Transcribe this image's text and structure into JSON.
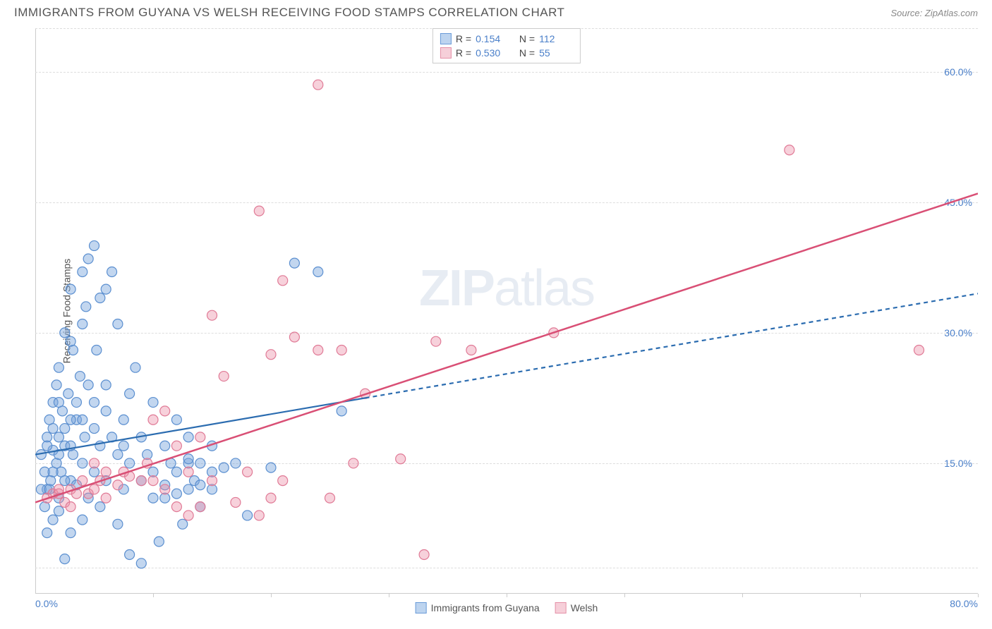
{
  "header": {
    "title": "IMMIGRANTS FROM GUYANA VS WELSH RECEIVING FOOD STAMPS CORRELATION CHART",
    "source_prefix": "Source: ",
    "source_name": "ZipAtlas.com"
  },
  "chart": {
    "type": "scatter",
    "y_axis_label": "Receiving Food Stamps",
    "background_color": "#ffffff",
    "grid_color": "#dddddd",
    "axis_color": "#cccccc",
    "label_color": "#555555",
    "tick_label_color": "#4a7fc9",
    "tick_fontsize": 14,
    "label_fontsize": 14,
    "xlim": [
      0,
      80
    ],
    "ylim": [
      0,
      65
    ],
    "x_ticks": [
      {
        "pos": 0,
        "label": "0.0%"
      },
      {
        "pos": 80,
        "label": "80.0%"
      }
    ],
    "x_tick_marks": [
      10,
      20,
      30,
      40,
      50,
      60,
      70,
      80
    ],
    "y_ticks": [
      {
        "pos": 15,
        "label": "15.0%"
      },
      {
        "pos": 30,
        "label": "30.0%"
      },
      {
        "pos": 45,
        "label": "45.0%"
      },
      {
        "pos": 60,
        "label": "60.0%"
      }
    ],
    "y_gridlines": [
      3,
      15,
      30,
      45,
      60,
      65
    ],
    "watermark_bold": "ZIP",
    "watermark_rest": "atlas"
  },
  "series": [
    {
      "key": "guyana",
      "label": "Immigrants from Guyana",
      "color_fill": "rgba(120,165,220,0.45)",
      "color_stroke": "#5b8fd0",
      "swatch_fill": "#bdd4ef",
      "swatch_border": "#6a9bd8",
      "R": "0.154",
      "N": "112",
      "marker_radius": 7,
      "trend": {
        "solid": {
          "x1": 0,
          "y1": 16,
          "x2": 28,
          "y2": 22.5
        },
        "dashed": {
          "x1": 28,
          "y1": 22.5,
          "x2": 80,
          "y2": 34.5
        },
        "color": "#2b6cb0",
        "width": 2.2,
        "dash": "6,5"
      },
      "points": [
        [
          0.5,
          16
        ],
        [
          0.8,
          14
        ],
        [
          1,
          18
        ],
        [
          1,
          12
        ],
        [
          1.2,
          20
        ],
        [
          1.3,
          13
        ],
        [
          1.5,
          16.5
        ],
        [
          1.5,
          22
        ],
        [
          1.8,
          24
        ],
        [
          2,
          18
        ],
        [
          2,
          11
        ],
        [
          2,
          26
        ],
        [
          2.2,
          14
        ],
        [
          2.3,
          21
        ],
        [
          2.5,
          17
        ],
        [
          2.5,
          30
        ],
        [
          2.8,
          23
        ],
        [
          3,
          13
        ],
        [
          3,
          35
        ],
        [
          3.2,
          16
        ],
        [
          3.2,
          28
        ],
        [
          3.5,
          12.5
        ],
        [
          3.5,
          20
        ],
        [
          3.8,
          25
        ],
        [
          4,
          37
        ],
        [
          4,
          15
        ],
        [
          4.2,
          18
        ],
        [
          4.3,
          33
        ],
        [
          4.5,
          11
        ],
        [
          4.5,
          38.5
        ],
        [
          5,
          40
        ],
        [
          5,
          22
        ],
        [
          5,
          14
        ],
        [
          5.2,
          28
        ],
        [
          5.5,
          34
        ],
        [
          5.5,
          17
        ],
        [
          6,
          35
        ],
        [
          6,
          13
        ],
        [
          6,
          24
        ],
        [
          6.5,
          37
        ],
        [
          7,
          31
        ],
        [
          7,
          16
        ],
        [
          7,
          8
        ],
        [
          7.5,
          12
        ],
        [
          7.5,
          20
        ],
        [
          8,
          23
        ],
        [
          8,
          4.5
        ],
        [
          8.5,
          26
        ],
        [
          9,
          3.5
        ],
        [
          9,
          18
        ],
        [
          9.5,
          16
        ],
        [
          10,
          14
        ],
        [
          10,
          22
        ],
        [
          10.5,
          6
        ],
        [
          11,
          17
        ],
        [
          11,
          12.5
        ],
        [
          11.5,
          15
        ],
        [
          12,
          14
        ],
        [
          12,
          20
        ],
        [
          12.5,
          8
        ],
        [
          13,
          15
        ],
        [
          13,
          18
        ],
        [
          13.5,
          13
        ],
        [
          14,
          15
        ],
        [
          14,
          10
        ],
        [
          15,
          14
        ],
        [
          15,
          17
        ],
        [
          16,
          14.5
        ],
        [
          17,
          15
        ],
        [
          18,
          9
        ],
        [
          20,
          14.5
        ],
        [
          22,
          38
        ],
        [
          24,
          37
        ],
        [
          26,
          21
        ],
        [
          13,
          15.5
        ],
        [
          2.5,
          4
        ],
        [
          3,
          7
        ],
        [
          4,
          8.5
        ],
        [
          1,
          7
        ],
        [
          1.5,
          8.5
        ],
        [
          2,
          9.5
        ],
        [
          3,
          29
        ],
        [
          4,
          31
        ],
        [
          0.5,
          12
        ],
        [
          0.8,
          10
        ],
        [
          1.2,
          12
        ],
        [
          1.5,
          14
        ],
        [
          1.8,
          15
        ],
        [
          4.5,
          24
        ],
        [
          5,
          19
        ],
        [
          6,
          21
        ],
        [
          2,
          16
        ],
        [
          2.5,
          19
        ],
        [
          3,
          17
        ],
        [
          3.5,
          22
        ],
        [
          4,
          20
        ],
        [
          1,
          17
        ],
        [
          1.5,
          19
        ],
        [
          2,
          22
        ],
        [
          2.5,
          13
        ],
        [
          3,
          20
        ],
        [
          6.5,
          18
        ],
        [
          7.5,
          17
        ],
        [
          8,
          15
        ],
        [
          9,
          13
        ],
        [
          10,
          11
        ],
        [
          11,
          11
        ],
        [
          12,
          11.5
        ],
        [
          13,
          12
        ],
        [
          15,
          12
        ],
        [
          14,
          12.5
        ],
        [
          5.5,
          10
        ]
      ]
    },
    {
      "key": "welsh",
      "label": "Welsh",
      "color_fill": "rgba(235,140,165,0.40)",
      "color_stroke": "#e07a96",
      "swatch_fill": "#f6cfd9",
      "swatch_border": "#e591a8",
      "R": "0.530",
      "N": "55",
      "marker_radius": 7,
      "trend": {
        "solid": {
          "x1": 0,
          "y1": 10.5,
          "x2": 80,
          "y2": 46
        },
        "dashed": null,
        "color": "#d94f75",
        "width": 2.5,
        "dash": null
      },
      "points": [
        [
          1,
          11
        ],
        [
          1.5,
          11.5
        ],
        [
          2,
          11.5
        ],
        [
          2,
          12
        ],
        [
          2.5,
          10.5
        ],
        [
          3,
          10
        ],
        [
          3,
          12
        ],
        [
          3.5,
          11.5
        ],
        [
          4,
          13
        ],
        [
          4.5,
          11.5
        ],
        [
          5,
          12
        ],
        [
          5,
          15
        ],
        [
          5.5,
          13
        ],
        [
          6,
          14
        ],
        [
          6,
          11
        ],
        [
          7,
          12.5
        ],
        [
          7.5,
          14
        ],
        [
          8,
          13.5
        ],
        [
          9,
          13
        ],
        [
          9.5,
          15
        ],
        [
          10,
          13
        ],
        [
          11,
          12
        ],
        [
          11,
          21
        ],
        [
          12,
          10
        ],
        [
          12,
          17
        ],
        [
          13,
          14
        ],
        [
          13,
          9
        ],
        [
          14,
          10
        ],
        [
          15,
          13
        ],
        [
          15,
          32
        ],
        [
          16,
          25
        ],
        [
          17,
          10.5
        ],
        [
          18,
          14
        ],
        [
          19,
          9
        ],
        [
          19,
          44
        ],
        [
          20,
          11
        ],
        [
          20,
          27.5
        ],
        [
          21,
          13
        ],
        [
          21,
          36
        ],
        [
          22,
          29.5
        ],
        [
          24,
          58.5
        ],
        [
          24,
          28
        ],
        [
          25,
          11
        ],
        [
          26,
          28
        ],
        [
          27,
          15
        ],
        [
          28,
          23
        ],
        [
          31,
          15.5
        ],
        [
          33,
          4.5
        ],
        [
          34,
          29
        ],
        [
          37,
          28
        ],
        [
          44,
          30
        ],
        [
          64,
          51
        ],
        [
          75,
          28
        ],
        [
          10,
          20
        ],
        [
          14,
          18
        ]
      ]
    }
  ],
  "legend_top": {
    "stat_label_R": "R",
    "stat_label_N": "N",
    "equals": " =  "
  }
}
